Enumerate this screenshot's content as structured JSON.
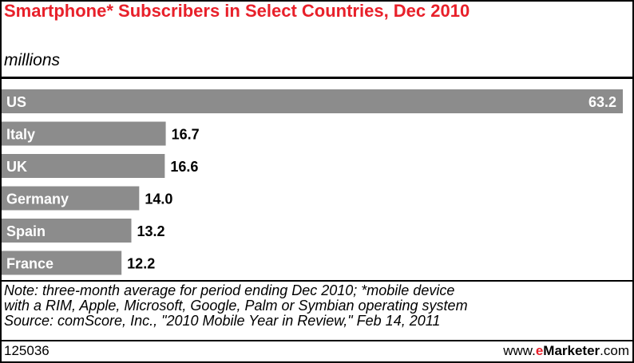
{
  "header": {
    "title": "Smartphone* Subscribers in Select Countries, Dec 2010",
    "subtitle": "millions"
  },
  "chart_data": {
    "type": "bar",
    "orientation": "horizontal",
    "title": "Smartphone* Subscribers in Select Countries, Dec 2010",
    "unit": "millions",
    "categories": [
      "US",
      "Italy",
      "UK",
      "Germany",
      "Spain",
      "France"
    ],
    "values": [
      63.2,
      16.7,
      16.6,
      14.0,
      13.2,
      12.2
    ],
    "value_labels": [
      "63.2",
      "16.7",
      "16.6",
      "14.0",
      "13.2",
      "12.2"
    ],
    "xlim": [
      0,
      63.2
    ],
    "bar_color": "#8c8c8c",
    "label_color": "#ffffff",
    "value_color": "#000000"
  },
  "notes": {
    "line1": "Note: three-month average for period ending Dec 2010; *mobile device",
    "line2": "with a RIM, Apple, Microsoft, Google, Palm or Symbian operating system",
    "line3": "Source: comScore, Inc., \"2010 Mobile Year in Review,\" Feb 14, 2011"
  },
  "footer": {
    "chart_id": "125036",
    "brand_prefix": "www.",
    "brand_e": "e",
    "brand_name": "Marketer",
    "brand_suffix": ".com"
  },
  "colors": {
    "accent": "#e8202a",
    "bar": "#8c8c8c"
  }
}
